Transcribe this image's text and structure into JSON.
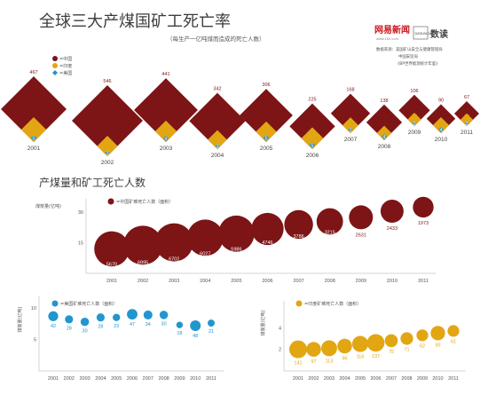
{
  "header": {
    "title": "全球三大产煤国矿工死亡率",
    "subtitle": "（每生产一亿吨煤而造成的死亡人数）",
    "brand_logo": "网易新闻",
    "brand_badge": "DATA BLOG",
    "brand_name": "数读",
    "brand_url": "www.163.com",
    "sources": [
      "数据来源：美国矿山安全与健康管理局",
      "中国安监局",
      "《BP世界能源统计年鉴》"
    ]
  },
  "colors": {
    "china": "#7d1416",
    "india": "#e2a613",
    "usa": "#2196cf",
    "axis": "#c9c9c9",
    "text": "#444444"
  },
  "chart_data": [
    {
      "type": "area",
      "title": "全球三大产煤国矿工死亡率",
      "subtitle": "（每生产一亿吨煤而造成的死亡人数）",
      "legend": [
        {
          "label": "=中国",
          "color": "#7d1416"
        },
        {
          "label": "=印度",
          "color": "#e2a613"
        },
        {
          "label": "=美国",
          "color": "#2196cf"
        }
      ],
      "categories": [
        "2001",
        "2002",
        "2003",
        "2004",
        "2005",
        "2006",
        "2007",
        "2008",
        "2009",
        "2010",
        "2011"
      ],
      "series": [
        {
          "name": "中国",
          "values": [
            467,
            546,
            441,
            342,
            306,
            225,
            168,
            138,
            106,
            90,
            67
          ]
        },
        {
          "name": "印度",
          "values": [
            70,
            47,
            52,
            41,
            48,
            54,
            28,
            24,
            20,
            29,
            18
          ]
        },
        {
          "name": "美国",
          "values": [
            5,
            3,
            4,
            3,
            5,
            5,
            3,
            4,
            2,
            4,
            2
          ]
        }
      ]
    },
    {
      "type": "scatter",
      "title": "产煤量和矿工死亡人数",
      "ylabel": "煤炭量(亿吨)",
      "ylim": [
        0,
        34
      ],
      "y_ticks": [
        15,
        30
      ],
      "legend": "=中国矿难死亡人数（面积）",
      "x": [
        "2001",
        "2002",
        "2003",
        "2004",
        "2005",
        "2006",
        "2007",
        "2008",
        "2009",
        "2010",
        "2011"
      ],
      "y": [
        12,
        13.8,
        15.2,
        17.5,
        19.5,
        21.8,
        24,
        25.5,
        27.5,
        30.5,
        32.5
      ],
      "labels": [
        5670,
        6995,
        6702,
        6027,
        5986,
        4746,
        3786,
        3215,
        2631,
        2433,
        1973
      ]
    },
    {
      "type": "scatter",
      "ylabel": "煤炭量(亿吨)",
      "ylim": [
        0,
        11
      ],
      "y_ticks": [
        5,
        10
      ],
      "legend": "=美国矿难死亡人数（面积）",
      "x": [
        "2001",
        "2002",
        "2003",
        "2004",
        "2005",
        "2006",
        "2007",
        "2008",
        "2009",
        "2010",
        "2011"
      ],
      "y": [
        8.7,
        8.2,
        7.8,
        8.5,
        8.5,
        9.0,
        8.9,
        8.9,
        7.3,
        7.2,
        7.6
      ],
      "labels": [
        42,
        28,
        30,
        28,
        23,
        47,
        34,
        30,
        18,
        48,
        21
      ]
    },
    {
      "type": "scatter",
      "ylabel": "煤炭量(亿吨)",
      "ylim": [
        0,
        6
      ],
      "y_ticks": [
        2,
        4
      ],
      "legend": "=印度矿难死亡人数（面积）",
      "x": [
        "2001",
        "2002",
        "2003",
        "2004",
        "2005",
        "2006",
        "2007",
        "2008",
        "2009",
        "2010",
        "2011"
      ],
      "y": [
        2.0,
        2.0,
        2.1,
        2.3,
        2.5,
        2.6,
        2.8,
        3.0,
        3.3,
        3.5,
        3.7
      ],
      "labels": [
        141,
        97,
        113,
        96,
        116,
        137,
        75,
        71,
        62,
        93,
        61
      ]
    }
  ]
}
